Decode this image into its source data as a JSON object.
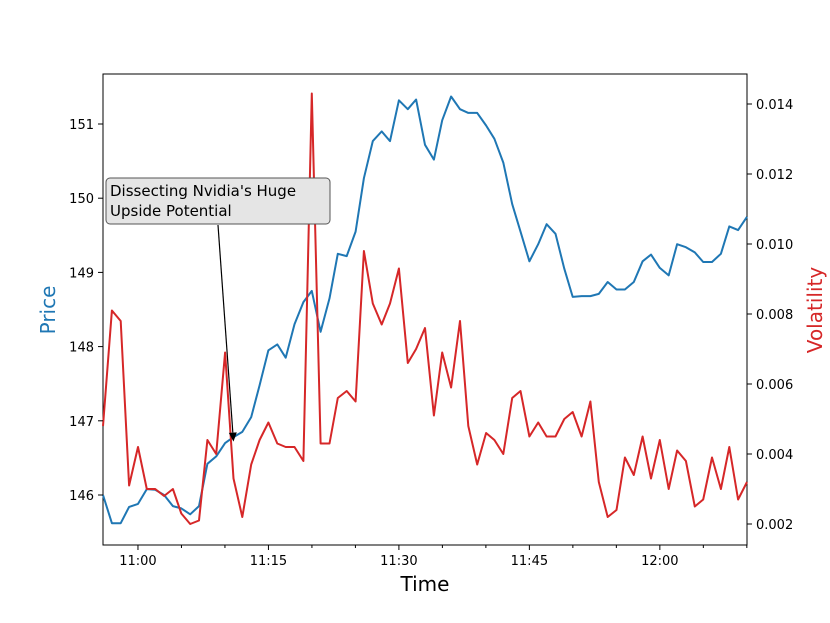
{
  "chart_data": {
    "type": "line",
    "title": "",
    "xlabel": "Time",
    "ylabel_left": "Price",
    "ylabel_right": "Volatility",
    "x_ticks": [
      "11:00",
      "11:15",
      "11:30",
      "11:45",
      "12:00"
    ],
    "y_left_ticks": [
      "146",
      "147",
      "148",
      "149",
      "150",
      "151"
    ],
    "y_right_ticks": [
      "0.002",
      "0.004",
      "0.006",
      "0.008",
      "0.010",
      "0.012",
      "0.014"
    ],
    "colors": {
      "price": "#1f77b4",
      "volatility": "#d62728",
      "annotation_box": "#e5e5e5"
    },
    "annotation": {
      "lines": [
        "Dissecting Nvidia's Huge",
        "Upside Potential"
      ],
      "target_time": 11.183,
      "target_price": 146.72
    },
    "series": [
      {
        "axis": "left",
        "times": [
          10.933,
          10.95,
          10.967,
          10.983,
          11.0,
          11.017,
          11.033,
          11.05,
          11.067,
          11.083,
          11.1,
          11.117,
          11.133,
          11.15,
          11.167,
          11.183,
          11.2,
          11.217,
          11.233,
          11.25,
          11.267,
          11.283,
          11.3,
          11.317,
          11.333,
          11.35,
          11.367,
          11.383,
          11.4,
          11.417,
          11.433,
          11.45,
          11.467,
          11.483,
          11.5,
          11.517,
          11.533,
          11.55,
          11.567,
          11.583,
          11.6,
          11.617,
          11.633,
          11.65,
          11.667,
          11.683,
          11.7,
          11.717,
          11.733,
          11.75,
          11.767,
          11.783,
          11.8,
          11.817,
          11.833,
          11.85,
          11.867,
          11.883,
          11.9,
          11.917,
          11.933,
          11.95,
          11.967,
          11.983,
          12.0,
          12.017,
          12.033,
          12.05,
          12.067,
          12.083,
          12.1,
          12.117,
          12.133,
          12.15,
          12.167
        ],
        "values": [
          146.0,
          145.62,
          145.62,
          145.84,
          145.88,
          146.08,
          146.07,
          146.0,
          145.85,
          145.82,
          145.74,
          145.85,
          146.42,
          146.52,
          146.7,
          146.78,
          146.85,
          147.05,
          147.48,
          147.95,
          148.03,
          147.85,
          148.3,
          148.6,
          148.75,
          148.2,
          148.65,
          149.25,
          149.22,
          149.55,
          150.27,
          150.77,
          150.9,
          150.77,
          151.32,
          151.2,
          151.33,
          150.72,
          150.52,
          151.05,
          151.37,
          151.2,
          151.15,
          151.15,
          150.98,
          150.8,
          150.48,
          149.92,
          149.55,
          149.15,
          149.38,
          149.65,
          149.52,
          149.05,
          148.67,
          148.68,
          148.68,
          148.71,
          148.87,
          148.77,
          148.77,
          148.87,
          149.15,
          149.24,
          149.06,
          148.96,
          149.38,
          149.34,
          149.27,
          149.14,
          149.14,
          149.25,
          149.62,
          149.57,
          149.75
        ]
      },
      {
        "axis": "right",
        "times": [
          10.933,
          10.95,
          10.967,
          10.983,
          11.0,
          11.017,
          11.033,
          11.05,
          11.067,
          11.083,
          11.1,
          11.117,
          11.133,
          11.15,
          11.167,
          11.183,
          11.2,
          11.217,
          11.233,
          11.25,
          11.267,
          11.283,
          11.3,
          11.317,
          11.333,
          11.35,
          11.367,
          11.383,
          11.4,
          11.417,
          11.433,
          11.45,
          11.467,
          11.483,
          11.5,
          11.517,
          11.533,
          11.55,
          11.567,
          11.583,
          11.6,
          11.617,
          11.633,
          11.65,
          11.667,
          11.683,
          11.7,
          11.717,
          11.733,
          11.75,
          11.767,
          11.783,
          11.8,
          11.817,
          11.833,
          11.85,
          11.867,
          11.883,
          11.9,
          11.917,
          11.933,
          11.95,
          11.967,
          11.983,
          12.0,
          12.017,
          12.033,
          12.05,
          12.067,
          12.083,
          12.1,
          12.117,
          12.133,
          12.15,
          12.167
        ],
        "values": [
          0.0048,
          0.0081,
          0.0078,
          0.0031,
          0.0042,
          0.003,
          0.003,
          0.0028,
          0.003,
          0.0023,
          0.002,
          0.0021,
          0.0044,
          0.004,
          0.0069,
          0.0033,
          0.0022,
          0.0037,
          0.0044,
          0.0049,
          0.0043,
          0.0042,
          0.0042,
          0.0038,
          0.0143,
          0.0043,
          0.0043,
          0.0056,
          0.0058,
          0.0055,
          0.0098,
          0.0083,
          0.0077,
          0.0083,
          0.0093,
          0.0066,
          0.007,
          0.0076,
          0.0051,
          0.0069,
          0.0059,
          0.0078,
          0.0048,
          0.0037,
          0.0046,
          0.0044,
          0.004,
          0.0056,
          0.0058,
          0.0045,
          0.0049,
          0.0045,
          0.0045,
          0.005,
          0.0052,
          0.0045,
          0.0055,
          0.0032,
          0.0022,
          0.0024,
          0.0039,
          0.0034,
          0.0045,
          0.0033,
          0.0044,
          0.003,
          0.0041,
          0.0038,
          0.0025,
          0.0027,
          0.0039,
          0.003,
          0.0042,
          0.0027,
          0.0032
        ]
      }
    ]
  }
}
